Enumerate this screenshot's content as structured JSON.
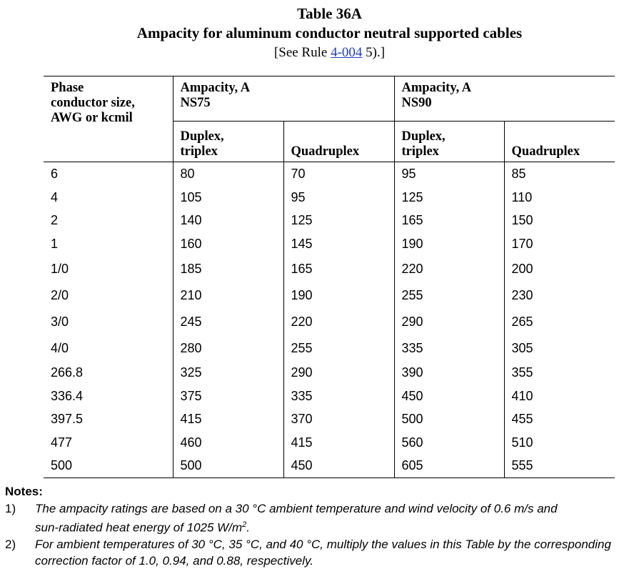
{
  "header": {
    "table_number": "Table 36A",
    "title": "Ampacity for aluminum conductor neutral supported cables",
    "ref_prefix": "[See Rule ",
    "ref_link": "4-004",
    "ref_suffix": " 5).]"
  },
  "table": {
    "col_phase": [
      "Phase",
      "conductor size,",
      "AWG or kcmil"
    ],
    "groups": [
      {
        "line1": "Ampacity, A",
        "line2": "NS75"
      },
      {
        "line1": "Ampacity, A",
        "line2": "NS90"
      }
    ],
    "subheads": [
      {
        "line1": "Duplex,",
        "line2": "triplex"
      },
      {
        "line1": "Quadruplex"
      },
      {
        "line1": "Duplex,",
        "line2": "triplex"
      },
      {
        "line1": "Quadruplex"
      }
    ],
    "rows": [
      [
        "6",
        "80",
        "70",
        "95",
        "85"
      ],
      [
        "4",
        "105",
        "95",
        "125",
        "110"
      ],
      [
        "2",
        "140",
        "125",
        "165",
        "150"
      ],
      [
        "1",
        "160",
        "145",
        "190",
        "170"
      ],
      [
        "1/0",
        "185",
        "165",
        "220",
        "200"
      ],
      [
        "2/0",
        "210",
        "190",
        "255",
        "230"
      ],
      [
        "3/0",
        "245",
        "220",
        "290",
        "265"
      ],
      [
        "4/0",
        "280",
        "255",
        "335",
        "305"
      ],
      [
        "266.8",
        "325",
        "290",
        "390",
        "355"
      ],
      [
        "336.4",
        "375",
        "335",
        "450",
        "410"
      ],
      [
        "397.5",
        "415",
        "370",
        "500",
        "455"
      ],
      [
        "477",
        "460",
        "415",
        "560",
        "510"
      ],
      [
        "500",
        "500",
        "450",
        "605",
        "555"
      ]
    ]
  },
  "notes": {
    "heading": "Notes:",
    "items": [
      {
        "num": "1)",
        "line1": "The ampacity ratings are based on a 30 °C ambient temperature and wind velocity of 0.6 m/s and",
        "line2_pre": "sun-radiated heat energy of 1025 W/m",
        "line2_sup": "2",
        "line2_post": "."
      },
      {
        "num": "2)",
        "line1": "For ambient temperatures of 30 °C, 35 °C, and 40 °C, multiply the values in this Table by the corresponding",
        "line2_pre": "correction factor of 1.0, 0.94, and 0.88, respectively.",
        "line2_sup": "",
        "line2_post": ""
      }
    ]
  }
}
